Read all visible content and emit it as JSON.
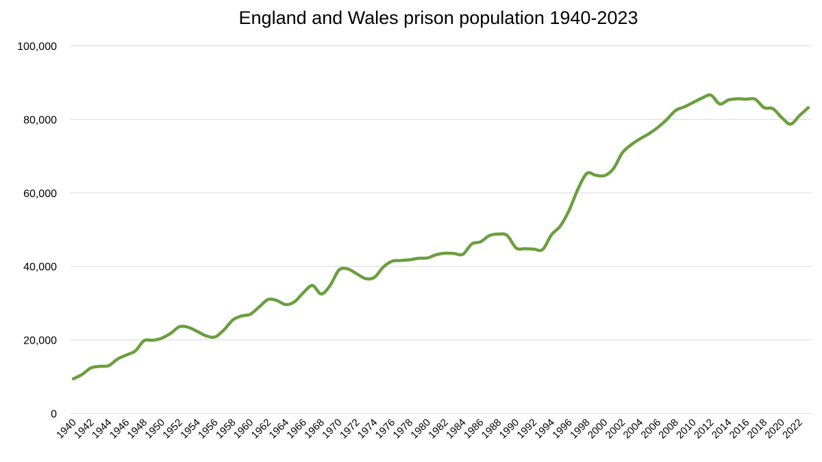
{
  "chart_data": {
    "type": "line",
    "title": "England and Wales prison population 1940-2023",
    "xlabel": "",
    "ylabel": "",
    "ylim": [
      0,
      100000
    ],
    "yticks": [
      0,
      20000,
      40000,
      60000,
      80000,
      100000
    ],
    "ytick_labels": [
      "0",
      "20,000",
      "40,000",
      "60,000",
      "80,000",
      "100,000"
    ],
    "xtick_labels": [
      "1940",
      "1942",
      "1944",
      "1946",
      "1948",
      "1950",
      "1952",
      "1954",
      "1956",
      "1958",
      "1960",
      "1962",
      "1964",
      "1966",
      "1968",
      "1970",
      "1972",
      "1974",
      "1976",
      "1978",
      "1980",
      "1982",
      "1984",
      "1986",
      "1988",
      "1990",
      "1992",
      "1994",
      "1996",
      "1998",
      "2000",
      "2002",
      "2004",
      "2006",
      "2008",
      "2010",
      "2012",
      "2014",
      "2016",
      "2018",
      "2020",
      "2022"
    ],
    "grid": true,
    "legend": "none",
    "x": [
      1940,
      1941,
      1942,
      1943,
      1944,
      1945,
      1946,
      1947,
      1948,
      1949,
      1950,
      1951,
      1952,
      1953,
      1954,
      1955,
      1956,
      1957,
      1958,
      1959,
      1960,
      1961,
      1962,
      1963,
      1964,
      1965,
      1966,
      1967,
      1968,
      1969,
      1970,
      1971,
      1972,
      1973,
      1974,
      1975,
      1976,
      1977,
      1978,
      1979,
      1980,
      1981,
      1982,
      1983,
      1984,
      1985,
      1986,
      1987,
      1988,
      1989,
      1990,
      1991,
      1992,
      1993,
      1994,
      1995,
      1996,
      1997,
      1998,
      1999,
      2000,
      2001,
      2002,
      2003,
      2004,
      2005,
      2006,
      2007,
      2008,
      2009,
      2010,
      2011,
      2012,
      2013,
      2014,
      2015,
      2016,
      2017,
      2018,
      2019,
      2020,
      2021,
      2022,
      2023
    ],
    "series": [
      {
        "color": "#6a9f3e",
        "values": [
          9400,
          10600,
          12400,
          12800,
          13000,
          14800,
          15900,
          17000,
          19800,
          19900,
          20500,
          21800,
          23600,
          23400,
          22300,
          21100,
          20800,
          22700,
          25400,
          26500,
          27000,
          29000,
          31000,
          30700,
          29600,
          30400,
          32900,
          34800,
          32500,
          34800,
          39000,
          39300,
          38000,
          36700,
          37000,
          39800,
          41400,
          41600,
          41800,
          42200,
          42300,
          43200,
          43600,
          43500,
          43300,
          46100,
          46700,
          48400,
          48800,
          48400,
          45000,
          44800,
          44700,
          44600,
          48600,
          51000,
          55300,
          61100,
          65300,
          64800,
          64700,
          66600,
          70900,
          73100,
          74700,
          76100,
          77800,
          79900,
          82400,
          83400,
          84600,
          85800,
          86600,
          84200,
          85300,
          85600,
          85500,
          85500,
          83200,
          82900,
          80500,
          78700,
          81000,
          83200
        ]
      }
    ]
  }
}
